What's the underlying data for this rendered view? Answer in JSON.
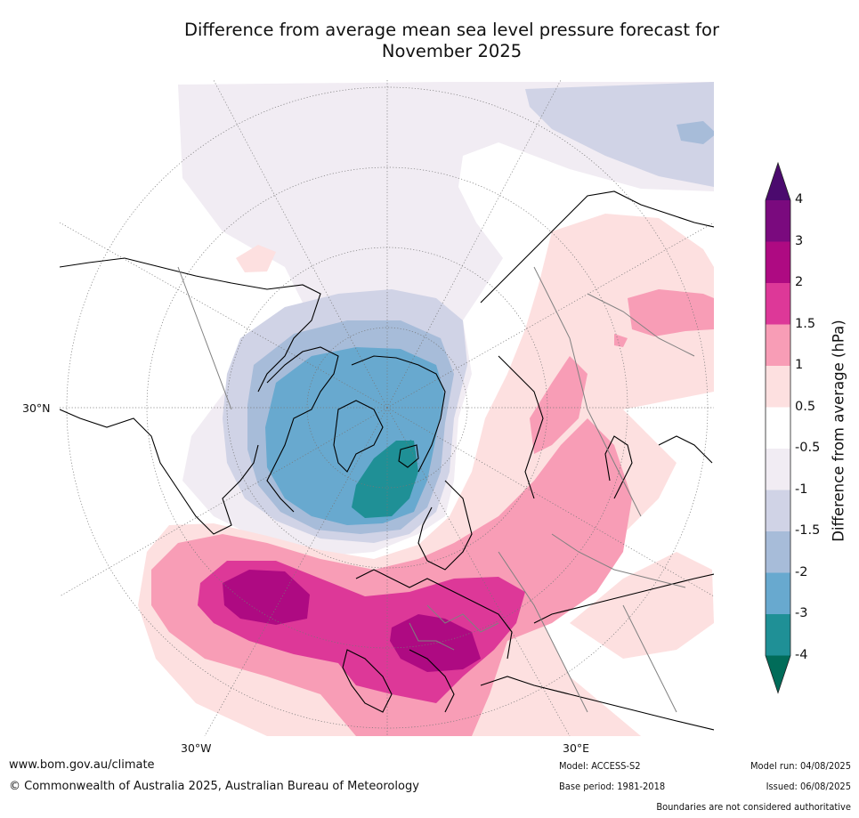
{
  "title_line1": "Difference from average mean sea level pressure forecast for",
  "title_line2": "November 2025",
  "map_labels": {
    "lat_30n": "30°N",
    "lon_30w": "30°W",
    "lon_30e": "30°E"
  },
  "colorbar": {
    "title": "Difference from average (hPa)",
    "levels": [
      "4",
      "3",
      "2",
      "1.5",
      "1",
      "0.5",
      "-0.5",
      "-1",
      "-1.5",
      "-2",
      "-3",
      "-4"
    ],
    "colors": [
      "#4b0a6e",
      "#7a0a7e",
      "#ae0a82",
      "#dd3898",
      "#f89db6",
      "#fde0e0",
      "#ffffff",
      "#f1ecf3",
      "#d0d3e6",
      "#a7bcd9",
      "#68a9cf",
      "#1f9096",
      "#016c59"
    ]
  },
  "footer": {
    "website": "www.bom.gov.au/climate",
    "copyright": "© Commonwealth of Australia 2025, Australian Bureau of Meteorology",
    "model": "Model: ACCESS-S2",
    "base_period": "Base period: 1981-2018",
    "model_run": "Model run: 04/08/2025",
    "issued": "Issued: 06/08/2025",
    "disclaimer": "Boundaries are not considered authoritative"
  }
}
